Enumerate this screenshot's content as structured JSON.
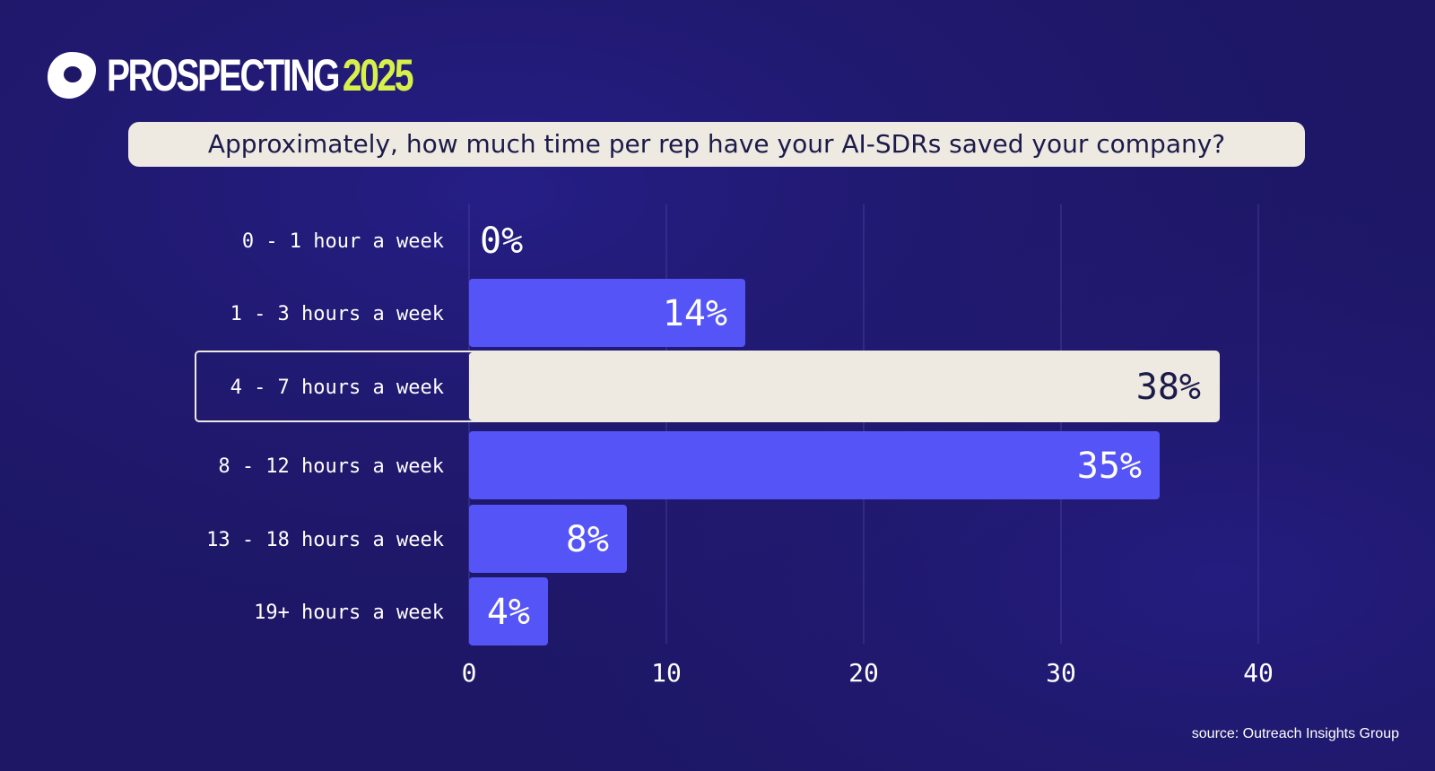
{
  "brand": {
    "name": "PROSPECTING",
    "year": "2025",
    "logo_icon": "outreach-logo-icon",
    "colors": {
      "year": "#d8f04a",
      "background": "#1e1766"
    }
  },
  "question": "Approximately, how much time per rep have your AI-SDRs saved your company?",
  "source": "source: Outreach Insights Group",
  "chart_data": {
    "type": "bar",
    "orientation": "horizontal",
    "categories": [
      "0 - 1 hour a week",
      "1 - 3 hours a week",
      "4 - 7 hours a week",
      "8 - 12 hours a week",
      "13 - 18 hours a week",
      "19+ hours a week"
    ],
    "values": [
      0,
      14,
      38,
      35,
      8,
      4
    ],
    "value_labels": [
      "0%",
      "14%",
      "38%",
      "35%",
      "8%",
      "4%"
    ],
    "xlim": [
      0,
      40
    ],
    "xticks": [
      "0",
      "10",
      "20",
      "30",
      "40"
    ],
    "highlight_category": "4 - 7 hours a week",
    "bar_color": "#5554f7",
    "highlight_color": "#eeeae1",
    "grid": true
  }
}
